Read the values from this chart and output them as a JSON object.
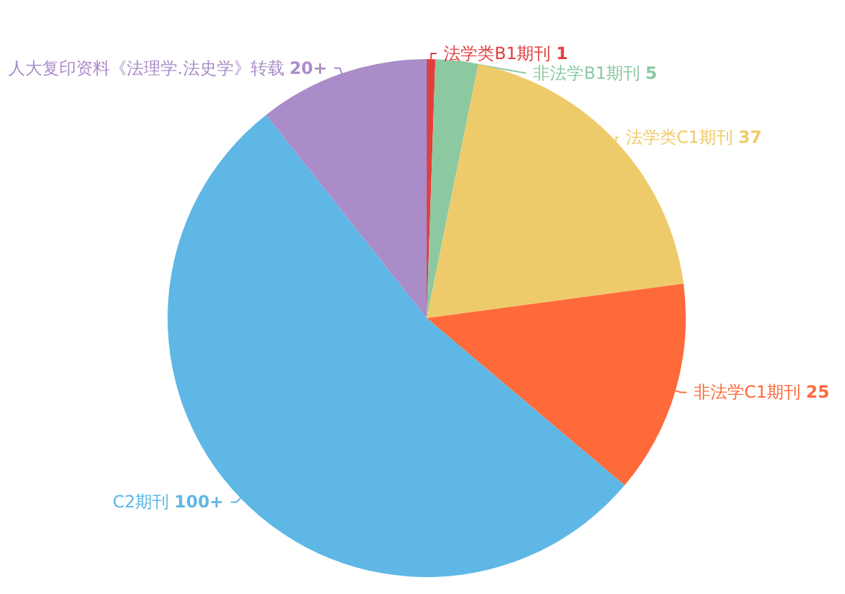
{
  "chart_data": {
    "type": "pie",
    "categories": [
      "法学类B1期刊",
      "非法学B1期刊",
      "法学类C1期刊",
      "非法学C1期刊",
      "C2期刊",
      "人大复印资料《法理学.法史学》转载"
    ],
    "values": [
      1,
      5,
      37,
      25,
      100,
      20
    ],
    "value_labels": [
      "1",
      "5",
      "37",
      "25",
      "100+",
      "20+"
    ],
    "colors": [
      "#e0403f",
      "#8cc9a0",
      "#eecb6a",
      "#ff6a3a",
      "#5fb7e5",
      "#a98cc8"
    ]
  }
}
